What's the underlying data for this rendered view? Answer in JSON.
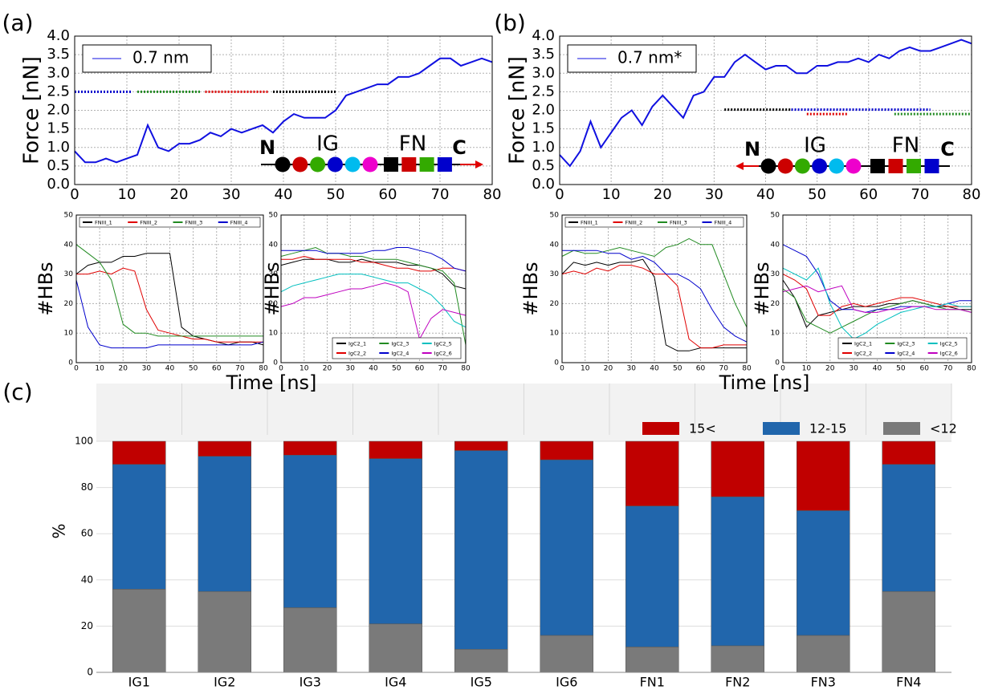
{
  "chart_data": [
    {
      "type": "line",
      "panel_label": "(a)",
      "ylabel": "Force [nN]",
      "x": [
        0,
        2,
        4,
        6,
        8,
        10,
        12,
        14,
        16,
        18,
        20,
        22,
        24,
        26,
        28,
        30,
        32,
        34,
        36,
        38,
        40,
        42,
        44,
        46,
        48,
        50,
        52,
        54,
        56,
        58,
        60,
        62,
        64,
        66,
        68,
        70,
        72,
        74,
        76,
        78,
        80
      ],
      "series": [
        {
          "name": "0.7 nm",
          "color": "#1010e0",
          "values": [
            0.9,
            0.6,
            0.6,
            0.7,
            0.6,
            0.7,
            0.8,
            1.6,
            1.0,
            0.9,
            1.1,
            1.1,
            1.2,
            1.4,
            1.3,
            1.5,
            1.4,
            1.5,
            1.6,
            1.4,
            1.7,
            1.9,
            1.8,
            1.8,
            1.8,
            2.0,
            2.4,
            2.5,
            2.6,
            2.7,
            2.7,
            2.9,
            2.9,
            3.0,
            3.2,
            3.4,
            3.4,
            3.2,
            3.3,
            3.4,
            3.3
          ]
        }
      ],
      "xlim": [
        0,
        80
      ],
      "xticks": [
        0,
        10,
        20,
        30,
        40,
        50,
        60,
        70,
        80
      ],
      "ylim": [
        0,
        4
      ],
      "yticks": [
        {
          "value": 0,
          "label": "0.0"
        },
        {
          "value": 0.5,
          "label": "0.5"
        },
        {
          "value": 1,
          "label": "1.0"
        },
        {
          "value": 1.5,
          "label": "1.5"
        },
        {
          "value": 2,
          "label": "2.0"
        },
        {
          "value": 2.5,
          "label": "2.5"
        },
        {
          "value": 3,
          "label": "3.0"
        },
        {
          "value": 3.5,
          "label": "3.5"
        },
        {
          "value": 4,
          "label": "4.0"
        }
      ],
      "grid": true,
      "legend": "upper left",
      "segments": [
        {
          "color": "#0000cc",
          "y": 2.5,
          "x0": 0,
          "x1": 11
        },
        {
          "color": "#228b22",
          "y": 2.5,
          "x0": 12,
          "x1": 24
        },
        {
          "color": "#dd0000",
          "y": 2.5,
          "x0": 25,
          "x1": 37
        },
        {
          "color": "#000000",
          "y": 2.5,
          "x0": 38,
          "x1": 50
        }
      ],
      "annotations": [
        "N",
        "IG",
        "FN",
        "C"
      ]
    },
    {
      "type": "line",
      "ylabel": "#HBs",
      "xlabel": "Time [ns]",
      "x": [
        0,
        5,
        10,
        15,
        20,
        25,
        30,
        35,
        40,
        45,
        50,
        55,
        60,
        65,
        70,
        75,
        80
      ],
      "series": [
        {
          "name": "FNIII_1",
          "color": "#000000",
          "values": [
            30,
            33,
            34,
            34,
            36,
            36,
            37,
            37,
            37,
            12,
            9,
            8,
            7,
            6,
            7,
            7,
            6
          ]
        },
        {
          "name": "FNIII_2",
          "color": "#e00000",
          "values": [
            30,
            30,
            31,
            30,
            32,
            31,
            18,
            11,
            10,
            9,
            8,
            8,
            7,
            7,
            7,
            7,
            7
          ]
        },
        {
          "name": "FNIII_3",
          "color": "#228b22",
          "values": [
            40,
            37,
            34,
            28,
            13,
            10,
            10,
            9,
            9,
            9,
            9,
            9,
            9,
            9,
            9,
            9,
            9
          ]
        },
        {
          "name": "FNIII_4",
          "color": "#0000cc",
          "values": [
            28,
            12,
            6,
            5,
            5,
            5,
            5,
            6,
            6,
            6,
            6,
            6,
            6,
            6,
            6,
            6,
            7
          ]
        }
      ],
      "xlim": [
        0,
        80
      ],
      "xticks": [
        0,
        10,
        20,
        30,
        40,
        50,
        60,
        70,
        80
      ],
      "ylim": [
        0,
        50
      ],
      "yticks": [
        0,
        10,
        20,
        30,
        40,
        50
      ],
      "grid": true,
      "legend": "upper center"
    },
    {
      "type": "line",
      "ylabel": "#HBs",
      "x": [
        0,
        5,
        10,
        15,
        20,
        25,
        30,
        35,
        40,
        45,
        50,
        55,
        60,
        65,
        70,
        75,
        80
      ],
      "series": [
        {
          "name": "IgC2_1",
          "color": "#000000",
          "values": [
            33,
            34,
            35,
            35,
            35,
            34,
            34,
            35,
            34,
            34,
            34,
            33,
            33,
            32,
            30,
            26,
            25
          ]
        },
        {
          "name": "IgC2_2",
          "color": "#e00000",
          "values": [
            35,
            35,
            36,
            35,
            35,
            35,
            35,
            34,
            34,
            33,
            32,
            32,
            31,
            31,
            32,
            32,
            31
          ]
        },
        {
          "name": "IgC2_3",
          "color": "#228b22",
          "values": [
            36,
            37,
            38,
            39,
            37,
            37,
            36,
            36,
            35,
            35,
            35,
            34,
            33,
            32,
            31,
            27,
            6
          ]
        },
        {
          "name": "IgC2_4",
          "color": "#0000cc",
          "values": [
            38,
            38,
            38,
            38,
            37,
            37,
            37,
            37,
            38,
            38,
            39,
            39,
            38,
            37,
            35,
            32,
            31
          ]
        },
        {
          "name": "IgC2_5",
          "color": "#00bfbf",
          "values": [
            24,
            26,
            27,
            28,
            29,
            30,
            30,
            30,
            29,
            28,
            27,
            27,
            25,
            23,
            19,
            14,
            12
          ]
        },
        {
          "name": "IgC2_6",
          "color": "#bf00bf",
          "values": [
            19,
            20,
            22,
            22,
            23,
            24,
            25,
            25,
            26,
            27,
            26,
            24,
            8,
            15,
            18,
            17,
            16
          ]
        }
      ],
      "xlim": [
        0,
        80
      ],
      "xticks": [
        0,
        10,
        20,
        30,
        40,
        50,
        60,
        70,
        80
      ],
      "ylim": [
        0,
        50
      ],
      "yticks": [
        0,
        10,
        20,
        30,
        40,
        50
      ],
      "grid": true,
      "legend": "lower right"
    },
    {
      "type": "line",
      "panel_label": "(b)",
      "ylabel": "Force [nN]",
      "x": [
        0,
        2,
        4,
        6,
        8,
        10,
        12,
        14,
        16,
        18,
        20,
        22,
        24,
        26,
        28,
        30,
        32,
        34,
        36,
        38,
        40,
        42,
        44,
        46,
        48,
        50,
        52,
        54,
        56,
        58,
        60,
        62,
        64,
        66,
        68,
        70,
        72,
        74,
        76,
        78,
        80
      ],
      "series": [
        {
          "name": "0.7 nm*",
          "color": "#1010e0",
          "values": [
            0.8,
            0.5,
            0.9,
            1.7,
            1.0,
            1.4,
            1.8,
            2.0,
            1.6,
            2.1,
            2.4,
            2.1,
            1.8,
            2.4,
            2.5,
            2.9,
            2.9,
            3.3,
            3.5,
            3.3,
            3.1,
            3.2,
            3.2,
            3.0,
            3.0,
            3.2,
            3.2,
            3.3,
            3.3,
            3.4,
            3.3,
            3.5,
            3.4,
            3.6,
            3.7,
            3.6,
            3.6,
            3.7,
            3.8,
            3.9,
            3.8
          ]
        }
      ],
      "xlim": [
        0,
        80
      ],
      "xticks": [
        0,
        10,
        20,
        30,
        40,
        50,
        60,
        70,
        80
      ],
      "ylim": [
        0,
        4
      ],
      "yticks": [
        {
          "value": 0,
          "label": "0.0"
        },
        {
          "value": 0.5,
          "label": "0.5"
        },
        {
          "value": 1,
          "label": "1.0"
        },
        {
          "value": 1.5,
          "label": "1.5"
        },
        {
          "value": 2,
          "label": "2.0"
        },
        {
          "value": 2.5,
          "label": "2.5"
        },
        {
          "value": 3,
          "label": "3.0"
        },
        {
          "value": 3.5,
          "label": "3.5"
        },
        {
          "value": 4,
          "label": "4.0"
        }
      ],
      "grid": true,
      "legend": "upper left",
      "segments": [
        {
          "color": "#000000",
          "y": 2.02,
          "x0": 32,
          "x1": 45
        },
        {
          "color": "#0000cc",
          "y": 2.02,
          "x0": 45,
          "x1": 72
        },
        {
          "color": "#dd0000",
          "y": 1.9,
          "x0": 48,
          "x1": 56
        },
        {
          "color": "#228b22",
          "y": 1.9,
          "x0": 65,
          "x1": 80
        }
      ],
      "annotations": [
        "N",
        "IG",
        "FN",
        "C"
      ]
    },
    {
      "type": "line",
      "ylabel": "#HBs",
      "xlabel": "Time [ns]",
      "x": [
        0,
        5,
        10,
        15,
        20,
        25,
        30,
        35,
        40,
        45,
        50,
        55,
        60,
        65,
        70,
        75,
        80
      ],
      "series": [
        {
          "name": "FNIII_1",
          "color": "#000000",
          "values": [
            30,
            34,
            33,
            34,
            33,
            34,
            34,
            35,
            29,
            6,
            4,
            4,
            5,
            5,
            5,
            5,
            5
          ]
        },
        {
          "name": "FNIII_2",
          "color": "#e00000",
          "values": [
            30,
            31,
            30,
            32,
            31,
            33,
            33,
            32,
            30,
            30,
            26,
            8,
            5,
            5,
            6,
            6,
            6
          ]
        },
        {
          "name": "FNIII_3",
          "color": "#228b22",
          "values": [
            36,
            38,
            37,
            37,
            38,
            39,
            38,
            37,
            36,
            39,
            40,
            42,
            40,
            40,
            30,
            20,
            12
          ]
        },
        {
          "name": "FNIII_4",
          "color": "#0000cc",
          "values": [
            38,
            38,
            38,
            38,
            37,
            37,
            35,
            36,
            34,
            30,
            30,
            28,
            25,
            18,
            12,
            9,
            7
          ]
        }
      ],
      "xlim": [
        0,
        80
      ],
      "xticks": [
        0,
        10,
        20,
        30,
        40,
        50,
        60,
        70,
        80
      ],
      "ylim": [
        0,
        50
      ],
      "yticks": [
        0,
        10,
        20,
        30,
        40,
        50
      ],
      "grid": true,
      "legend": "upper center"
    },
    {
      "type": "line",
      "ylabel": "#HBs",
      "x": [
        0,
        5,
        10,
        15,
        20,
        25,
        30,
        35,
        40,
        45,
        50,
        55,
        60,
        65,
        70,
        75,
        80
      ],
      "series": [
        {
          "name": "IgC2_1",
          "color": "#000000",
          "values": [
            28,
            22,
            12,
            16,
            17,
            18,
            19,
            19,
            19,
            20,
            20,
            21,
            20,
            19,
            19,
            18,
            18
          ]
        },
        {
          "name": "IgC2_2",
          "color": "#e00000",
          "values": [
            30,
            28,
            25,
            16,
            16,
            19,
            20,
            19,
            20,
            21,
            22,
            22,
            21,
            20,
            19,
            19,
            19
          ]
        },
        {
          "name": "IgC2_3",
          "color": "#228b22",
          "values": [
            25,
            22,
            14,
            12,
            10,
            12,
            14,
            16,
            18,
            19,
            20,
            21,
            20,
            19,
            18,
            18,
            17
          ]
        },
        {
          "name": "IgC2_4",
          "color": "#0000cc",
          "values": [
            40,
            38,
            36,
            30,
            21,
            18,
            18,
            17,
            18,
            18,
            19,
            19,
            19,
            19,
            20,
            21,
            21
          ]
        },
        {
          "name": "IgC2_5",
          "color": "#00bfbf",
          "values": [
            32,
            30,
            28,
            32,
            20,
            12,
            8,
            10,
            13,
            15,
            17,
            18,
            19,
            19,
            20,
            19,
            19
          ]
        },
        {
          "name": "IgC2_6",
          "color": "#bf00bf",
          "values": [
            24,
            25,
            26,
            24,
            25,
            26,
            18,
            17,
            17,
            18,
            18,
            19,
            19,
            18,
            18,
            18,
            17
          ]
        }
      ],
      "xlim": [
        0,
        80
      ],
      "xticks": [
        0,
        10,
        20,
        30,
        40,
        50,
        60,
        70,
        80
      ],
      "ylim": [
        0,
        50
      ],
      "yticks": [
        0,
        10,
        20,
        30,
        40,
        50
      ],
      "grid": true,
      "legend": "lower right"
    },
    {
      "type": "bar",
      "panel_label": "(c)",
      "ylabel": "%",
      "stacked": true,
      "categories": [
        "IG1",
        "IG2",
        "IG3",
        "IG4",
        "IG5",
        "IG6",
        "FN1",
        "FN2",
        "FN3",
        "FN4"
      ],
      "series": [
        {
          "name": "<12",
          "color": "#7a7a7a",
          "values": [
            36,
            35,
            28,
            21,
            10,
            16,
            11,
            11.5,
            16,
            35
          ]
        },
        {
          "name": "12-15",
          "color": "#2166ac",
          "values": [
            54,
            58.5,
            66,
            71.5,
            86,
            76,
            61,
            64.5,
            54,
            55
          ]
        },
        {
          "name": "15<",
          "color": "#c00000",
          "values": [
            10,
            6.5,
            6,
            7.5,
            4,
            8,
            28,
            24,
            30,
            10
          ]
        }
      ],
      "ylim": [
        0,
        125
      ],
      "yticks": [
        0,
        20,
        40,
        60,
        80,
        100
      ],
      "grid": true,
      "legend": "upper right"
    }
  ]
}
